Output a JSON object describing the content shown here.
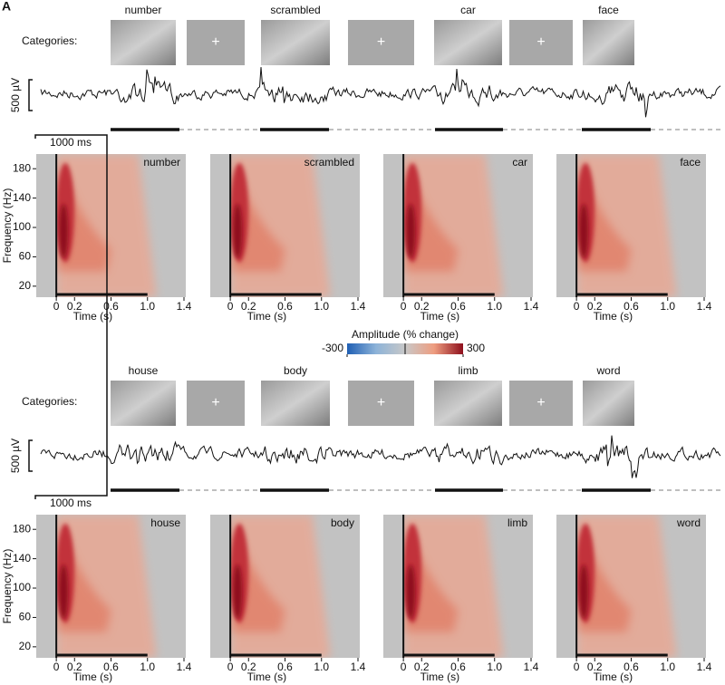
{
  "panel_label": "A",
  "colorbar": {
    "title": "Amplitude (% change)",
    "ticks": [
      -300,
      300
    ],
    "lim": [
      -300,
      300
    ]
  },
  "axes": {
    "ylabel": "Frequency (Hz)",
    "xlabel": "Time (s)",
    "yticks": [
      20,
      60,
      100,
      140,
      180
    ],
    "ylim": [
      5,
      200
    ],
    "xticks": [
      0,
      0.2,
      0.6,
      {
        "value": 1,
        "label": "1.0"
      },
      1.4
    ],
    "xlim": [
      -0.22,
      1.42
    ]
  },
  "rows": [
    {
      "categories_label": "Categories:",
      "fixation": "+",
      "scale_voltage": "500 µV",
      "scale_time": "1000 ms",
      "stimuli": [
        "number",
        "scrambled",
        "car",
        "face"
      ]
    },
    {
      "categories_label": "Categories:",
      "fixation": "+",
      "scale_voltage": "500 µV",
      "scale_time": "1000 ms",
      "stimuli": [
        "house",
        "body",
        "limb",
        "word"
      ]
    }
  ]
}
